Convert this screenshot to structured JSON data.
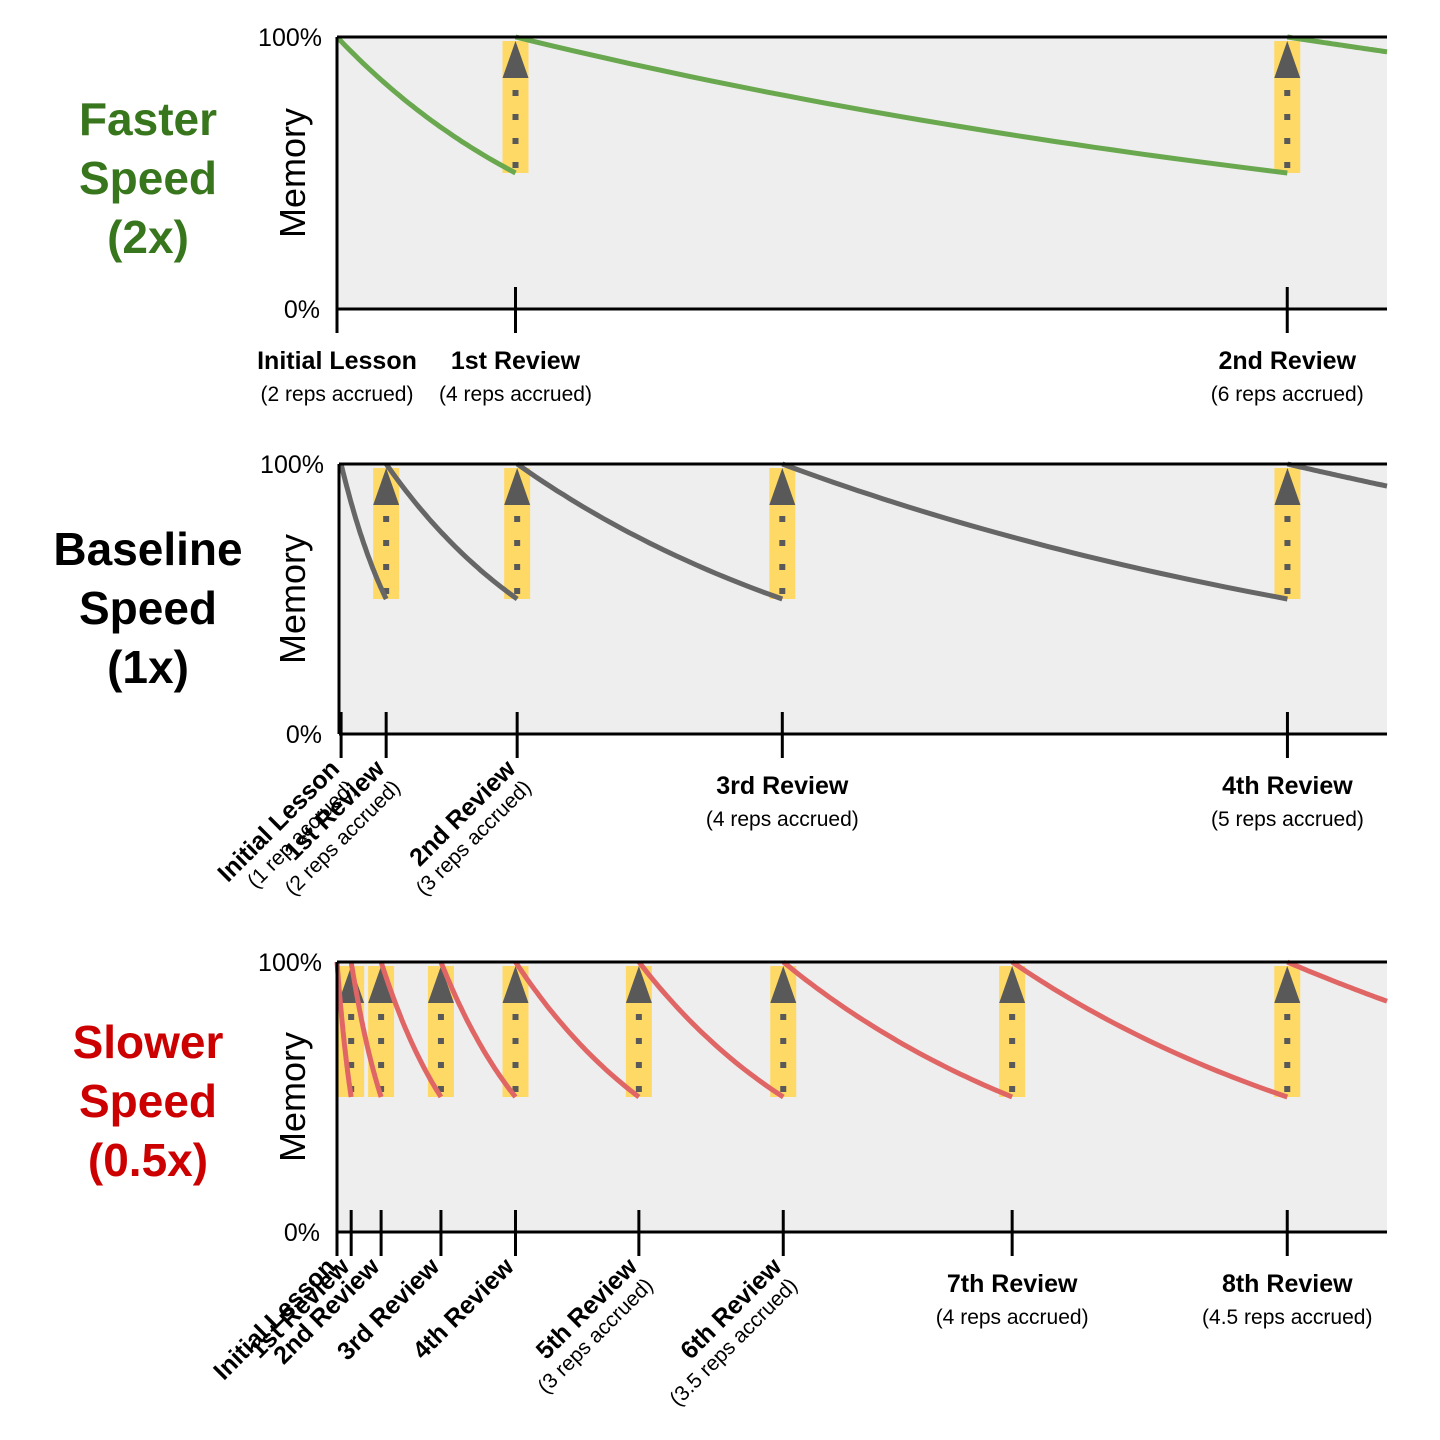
{
  "chart_data": [
    {
      "type": "line",
      "title": "Faster Speed (2x)",
      "title_lines": [
        "Faster",
        "Speed",
        "(2x)"
      ],
      "title_color": "#38761d",
      "line_color": "#6aa84f",
      "ylabel": "Memory",
      "yticks": [
        "100%",
        "0%"
      ],
      "ylim": [
        0,
        100
      ],
      "xlim": [
        0,
        200
      ],
      "review_dip_memory": 50,
      "label_style": "horizontal",
      "events": [
        {
          "t": 0,
          "label": "Initial Lesson",
          "sub": "(2 reps accrued)"
        },
        {
          "t": 34,
          "label": "1st Review",
          "sub": "(4 reps accrued)"
        },
        {
          "t": 181,
          "label": "2nd Review",
          "sub": "(6 reps accrued)"
        }
      ]
    },
    {
      "type": "line",
      "title": "Baseline Speed (1x)",
      "title_lines": [
        "Baseline",
        "Speed",
        "(1x)"
      ],
      "title_color": "#000000",
      "line_color": "#666666",
      "ylabel": "Memory",
      "yticks": [
        "100%",
        "0%"
      ],
      "ylim": [
        0,
        100
      ],
      "xlim": [
        0,
        200
      ],
      "review_dip_memory": 50,
      "label_style": "mixed",
      "events": [
        {
          "t": 0.4,
          "label": "Initial Lesson",
          "sub": "(1 rep accrued)",
          "rotated": true
        },
        {
          "t": 9,
          "label": "1st Review",
          "sub": "(2 reps accrued)",
          "rotated": true
        },
        {
          "t": 34,
          "label": "2nd Review",
          "sub": "(3 reps accrued)",
          "rotated": true
        },
        {
          "t": 84.6,
          "label": "3rd Review",
          "sub": "(4 reps accrued)",
          "rotated": false
        },
        {
          "t": 181,
          "label": "4th Review",
          "sub": "(5 reps accrued)",
          "rotated": false
        }
      ]
    },
    {
      "type": "line",
      "title": "Slower Speed (0.5x)",
      "title_lines": [
        "Slower",
        "Speed",
        "(0.5x)"
      ],
      "title_color": "#cc0000",
      "line_color": "#e06666",
      "ylabel": "Memory",
      "yticks": [
        "100%",
        "0%"
      ],
      "ylim": [
        0,
        100
      ],
      "xlim": [
        0,
        200
      ],
      "review_dip_memory": 50,
      "label_style": "mixed",
      "events": [
        {
          "t": 0,
          "label": "Initial Lesson",
          "sub": "",
          "rotated": true
        },
        {
          "t": 2.7,
          "label": "1st Review",
          "sub": "",
          "rotated": true
        },
        {
          "t": 8.4,
          "label": "2nd Review",
          "sub": "",
          "rotated": true
        },
        {
          "t": 19.8,
          "label": "3rd Review",
          "sub": "",
          "rotated": true
        },
        {
          "t": 34,
          "label": "4th Review",
          "sub": "",
          "rotated": true
        },
        {
          "t": 57.5,
          "label": "5th Review",
          "sub": "(3 reps accrued)",
          "rotated": true
        },
        {
          "t": 85,
          "label": "6th Review",
          "sub": "(3.5 reps accrued)",
          "rotated": true
        },
        {
          "t": 128.6,
          "label": "7th Review",
          "sub": "(4 reps accrued)",
          "rotated": false
        },
        {
          "t": 181,
          "label": "8th Review",
          "sub": "(4.5 reps accrued)",
          "rotated": false
        }
      ]
    }
  ],
  "colors": {
    "plot_background": "#eeeeee",
    "review_bar": "#ffd966",
    "arrow": "#595959",
    "axis": "#000000"
  }
}
